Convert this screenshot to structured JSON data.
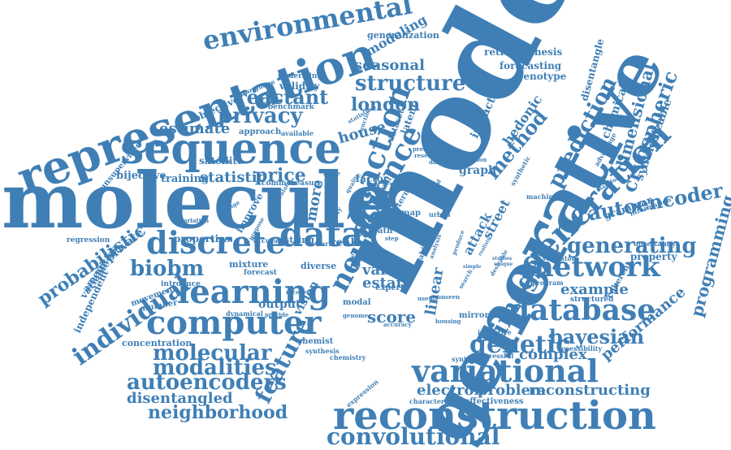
{
  "color": "#3f7fb5",
  "words": [
    "model",
    "generative",
    "molecule",
    "representation",
    "sequence",
    "reconstruction",
    "environmental",
    "neural",
    "science",
    "generation",
    "data",
    "discrete",
    "learning",
    "computer",
    "network",
    "database",
    "variational",
    "convolutional",
    "reaction",
    "autoencoder",
    "image",
    "prediction",
    "dimensional",
    "cryospheric",
    "individual",
    "genetic",
    "structure",
    "autoencoders",
    "molecular",
    "modalities",
    "neighborhood",
    "disentangled",
    "feature",
    "probabilistic",
    "privacy",
    "reactant",
    "london",
    "bayesian",
    "generating",
    "programming",
    "performance",
    "electron",
    "problem",
    "reconstructing",
    "biobm",
    "estimate",
    "statistic",
    "price",
    "seasonal",
    "complex",
    "example",
    "house",
    "score",
    "method",
    "modeling",
    "chemical",
    "synthesizable",
    "disentangle",
    "retrosynthesis",
    "forecasting",
    "genotype",
    "hedonic",
    "impact",
    "latent",
    "dataset",
    "objective",
    "satellite",
    "valid",
    "estate",
    "linear",
    "risk",
    "graph",
    "attack",
    "street",
    "private",
    "amenities",
    "variable",
    "independent",
    "movement",
    "number",
    "introduce",
    "mixture",
    "properties",
    "concentration",
    "unsupervised",
    "bijective",
    "training",
    "output",
    "vision",
    "more",
    "improve",
    "real",
    "chemist",
    "synthesis",
    "chemistry",
    "expression",
    "characterize",
    "effectiveness",
    "inductive",
    "successful",
    "synthesize",
    "accessibility",
    "structured",
    "coherent",
    "property",
    "uncertainty",
    "grammar",
    "information",
    "advantage",
    "manifold",
    "synthetic",
    "criterion",
    "machine",
    "validator",
    "program",
    "desirable",
    "search",
    "expert",
    "accuracy",
    "housing",
    "mirroring",
    "genome",
    "modal",
    "forecast",
    "accurate",
    "string",
    "diverse",
    "regression",
    "dynamical",
    "provide",
    "recover",
    "useful",
    "unseen",
    "useful",
    "benchmark",
    "language",
    "approach",
    "available",
    "underlying",
    "validity",
    "generalization",
    "function",
    "statistical",
    "predict",
    "research",
    "different",
    "common",
    "measure",
    "quality",
    "factor",
    "route",
    "allow",
    "term",
    "map",
    "urban",
    "limited",
    "study",
    "visual",
    "gwas",
    "change",
    "variation",
    "particular",
    "propose",
    "path",
    "step",
    "work",
    "cell",
    "utility",
    "ability",
    "analysis",
    "produce",
    "studies",
    "unique",
    "simple",
    "realistic"
  ]
}
